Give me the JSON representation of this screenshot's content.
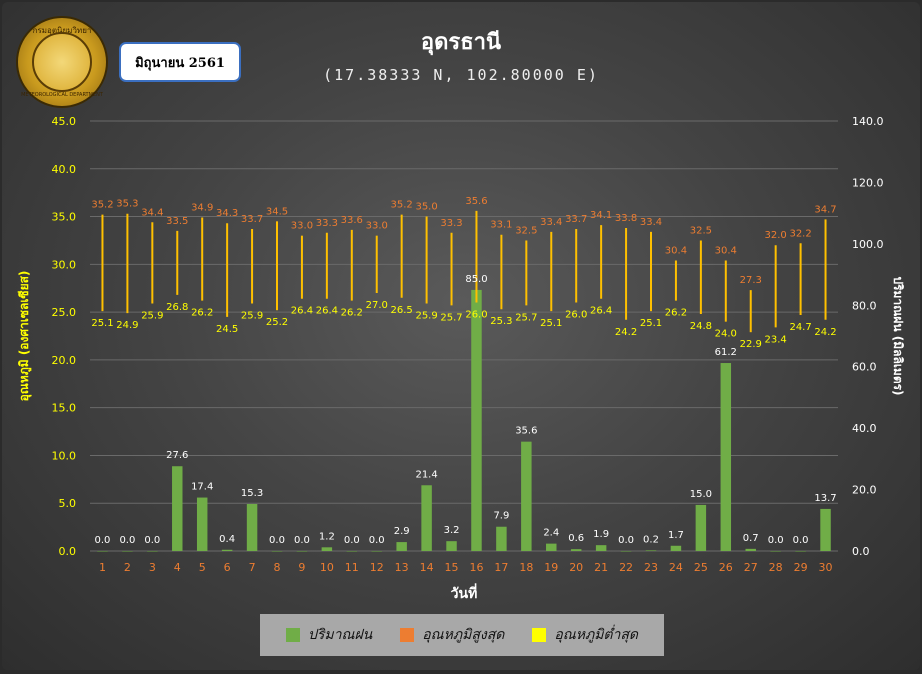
{
  "header": {
    "title": "อุดรธานี",
    "subtitle": "(17.38333 N, 102.80000 E)",
    "date_label": "มิถุนายน 2561"
  },
  "logo": {
    "top_text": "กรมอุตุนิยมวิทยา",
    "bottom_text": "METEOROLOGICAL DEPARTMENT"
  },
  "legend": {
    "rain_label": "ปริมาณฝน",
    "tmax_label": "อุณหภูมิสูงสุด",
    "tmin_label": "อุณหภูมิต่ำสุด"
  },
  "colors": {
    "rain": "#70ad47",
    "tmax": "#ed7d31",
    "tmin": "#ffff00",
    "range_line": "#ffc000",
    "left_axis_text": "#ffff00",
    "right_axis_text": "#ffffff",
    "x_axis_text": "#ed7d31"
  },
  "chart_data": {
    "type": "bar",
    "xlabel": "วันที่",
    "ylabel_left": "อุณหภูมิ (องศาเซลเซียส)",
    "ylabel_right": "ปริมาณฝน (มิลลิเมตร)",
    "ylim_left": [
      0,
      45
    ],
    "ylim_right": [
      0,
      140
    ],
    "yticks_left": [
      "0.0",
      "5.0",
      "10.0",
      "15.0",
      "20.0",
      "25.0",
      "30.0",
      "35.0",
      "40.0",
      "45.0"
    ],
    "yticks_right": [
      "0.0",
      "20.0",
      "40.0",
      "60.0",
      "80.0",
      "100.0",
      "120.0",
      "140.0"
    ],
    "categories": [
      "1",
      "2",
      "3",
      "4",
      "5",
      "6",
      "7",
      "8",
      "9",
      "10",
      "11",
      "12",
      "13",
      "14",
      "15",
      "16",
      "17",
      "18",
      "19",
      "20",
      "21",
      "22",
      "23",
      "24",
      "25",
      "26",
      "27",
      "28",
      "29",
      "30"
    ],
    "series": [
      {
        "name": "ปริมาณฝน",
        "axis": "right",
        "type": "bar",
        "values": [
          0.0,
          0.0,
          0.0,
          27.6,
          17.4,
          0.4,
          15.3,
          0.0,
          0.0,
          1.2,
          0.0,
          0.0,
          2.9,
          21.4,
          3.2,
          85.0,
          7.9,
          35.6,
          2.4,
          0.6,
          1.9,
          0.0,
          0.2,
          1.7,
          15.0,
          61.2,
          0.7,
          0.0,
          0.0,
          13.7
        ],
        "labels": [
          "0.0",
          "0.0",
          "0.0",
          "27.6",
          "17.4",
          "0.4",
          "15.3",
          "0.0",
          "0.0",
          "1.2",
          "0.0",
          "0.0",
          "2.9",
          "21.4",
          "3.2",
          "85.0",
          "7.9",
          "35.6",
          "2.4",
          "0.6",
          "1.9",
          "0.0",
          "0.2",
          "1.7",
          "15.0",
          "61.2",
          "0.7",
          "0.0",
          "0.0",
          "13.7"
        ]
      },
      {
        "name": "อุณหภูมิสูงสุด",
        "axis": "left",
        "type": "range-high",
        "values": [
          35.2,
          35.3,
          34.4,
          33.5,
          34.9,
          34.3,
          33.7,
          34.5,
          33.0,
          33.3,
          33.6,
          33.0,
          35.2,
          35.0,
          33.3,
          35.6,
          33.1,
          32.5,
          33.4,
          33.7,
          34.1,
          33.8,
          33.4,
          30.4,
          32.5,
          30.4,
          27.3,
          32.0,
          32.2,
          34.7
        ],
        "labels": [
          "35.2",
          "35.3",
          "34.4",
          "33.5",
          "34.9",
          "34.3",
          "33.7",
          "34.5",
          "33.0",
          "33.3",
          "33.6",
          "33.0",
          "35.2",
          "35.0",
          "33.3",
          "35.6",
          "33.1",
          "32.5",
          "33.4",
          "33.7",
          "34.1",
          "33.8",
          "33.4",
          "30.4",
          "32.5",
          "30.4",
          "27.3",
          "32.0",
          "32.2",
          "34.7"
        ]
      },
      {
        "name": "อุณหภูมิต่ำสุด",
        "axis": "left",
        "type": "range-low",
        "values": [
          25.1,
          24.9,
          25.9,
          26.8,
          26.2,
          24.5,
          25.9,
          25.2,
          26.4,
          26.4,
          26.2,
          27.0,
          26.5,
          25.9,
          25.7,
          26.0,
          25.3,
          25.7,
          25.1,
          26.0,
          26.4,
          24.2,
          25.1,
          26.2,
          24.8,
          24.0,
          22.9,
          23.4,
          24.7,
          24.2
        ],
        "labels": [
          "25.1",
          "24.9",
          "25.9",
          "26.8",
          "26.2",
          "24.5",
          "25.9",
          "25.2",
          "26.4",
          "26.4",
          "26.2",
          "27.0",
          "26.5",
          "25.9",
          "25.7",
          "26.0",
          "25.3",
          "25.7",
          "25.1",
          "26.0",
          "26.4",
          "24.2",
          "25.1",
          "26.2",
          "24.8",
          "24.0",
          "22.9",
          "23.4",
          "24.7",
          "24.2"
        ]
      }
    ],
    "grid": true,
    "legend_position": "bottom"
  }
}
